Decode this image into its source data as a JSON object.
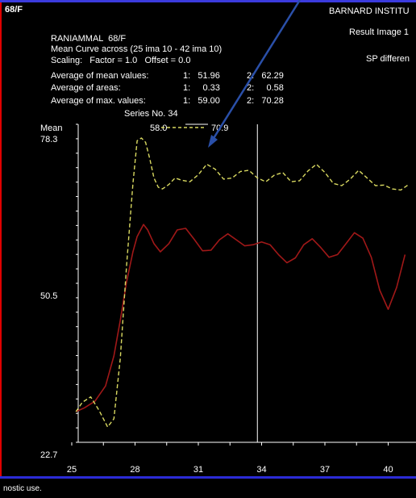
{
  "header": {
    "left_id": "68/F",
    "institution": "BARNARD INSTITU",
    "result_image": "Result Image 1",
    "sp_label": "SP differen"
  },
  "info": {
    "patient": "RANIAMMAL  68/F",
    "curve": "Mean Curve across (25 ima 10 - 42 ima 10)",
    "scaling": "Scaling:   Factor = 1.0   Offset = 0.0",
    "avg_mean": {
      "label": "Average of mean values:",
      "v1": "1:   51.96",
      "v2": "2:   62.29"
    },
    "avg_areas": {
      "label": "Average of areas:",
      "v1": "1:     0.33",
      "v2": "2:     0.58"
    },
    "avg_max": {
      "label": "Average of max. values:",
      "v1": "1:   59.00",
      "v2": "2:   70.28"
    },
    "series": "Series No. 34"
  },
  "footer": {
    "text": "nostic use."
  },
  "colors": {
    "red": "#e00000",
    "blue": "#2b2bd6",
    "series1": "#a01818",
    "series2": "#d8d860",
    "arrow": "#2a4fa8"
  },
  "chart_data": {
    "type": "line",
    "ylabel": "Mean",
    "ylim": [
      22.7,
      78.3
    ],
    "yticks": [
      "78.3",
      "50.5",
      "22.7"
    ],
    "xlim": [
      25,
      42
    ],
    "xticks": [
      "25",
      "28",
      "31",
      "34",
      "37",
      "40"
    ],
    "cursor_x": 33.8,
    "peak_labels": [
      "58.0",
      "70.9"
    ],
    "series": [
      {
        "values_x": [
          25.2,
          25.6,
          26.1,
          26.6,
          27.0,
          27.3,
          27.6,
          27.9,
          28.1,
          28.4,
          28.6,
          28.9,
          29.2,
          29.6,
          30.0,
          30.4,
          30.8,
          31.2,
          31.6,
          32.0,
          32.4,
          32.8,
          33.2,
          33.6,
          34.0,
          34.4,
          34.8,
          35.2,
          35.6,
          36.0,
          36.4,
          36.8,
          37.2,
          37.6,
          38.0,
          38.4,
          38.8,
          39.2,
          39.6,
          40.0,
          40.4,
          40.8
        ],
        "values_y": [
          28.3,
          29.0,
          30.2,
          33.0,
          38.5,
          45.0,
          52.0,
          57.5,
          60.3,
          62.5,
          61.5,
          59.0,
          57.5,
          59.0,
          61.5,
          61.8,
          59.8,
          57.7,
          57.8,
          59.7,
          60.8,
          59.7,
          58.6,
          58.8,
          59.3,
          58.8,
          57.0,
          55.5,
          56.4,
          58.8,
          59.9,
          58.3,
          56.5,
          57.0,
          59.0,
          61.0,
          60.0,
          56.5,
          50.5,
          47.0,
          51.0,
          57.0
        ]
      },
      {
        "values_x": [
          25.2,
          25.5,
          25.9,
          26.3,
          26.7,
          27.0,
          27.3,
          27.6,
          27.9,
          28.1,
          28.3,
          28.5,
          28.7,
          28.9,
          29.1,
          29.3,
          29.6,
          29.9,
          30.2,
          30.6,
          31.0,
          31.4,
          31.8,
          32.2,
          32.6,
          33.0,
          33.4,
          33.8,
          34.2,
          34.6,
          35.0,
          35.4,
          35.8,
          36.2,
          36.6,
          37.0,
          37.4,
          37.8,
          38.2,
          38.6,
          39.0,
          39.4,
          39.8,
          40.2,
          40.6,
          41.0
        ],
        "values_y": [
          28.3,
          30.0,
          31.0,
          28.5,
          25.5,
          27.0,
          38.0,
          55.0,
          70.0,
          77.8,
          78.3,
          77.5,
          74.5,
          71.0,
          69.3,
          69.0,
          69.8,
          71.0,
          70.6,
          70.3,
          71.6,
          73.5,
          72.6,
          70.8,
          71.0,
          72.2,
          72.4,
          71.0,
          70.3,
          71.5,
          72.0,
          70.3,
          70.5,
          72.3,
          73.5,
          72.0,
          70.0,
          69.6,
          70.8,
          72.4,
          71.0,
          69.6,
          69.7,
          69.0,
          68.8,
          69.9
        ]
      }
    ]
  }
}
